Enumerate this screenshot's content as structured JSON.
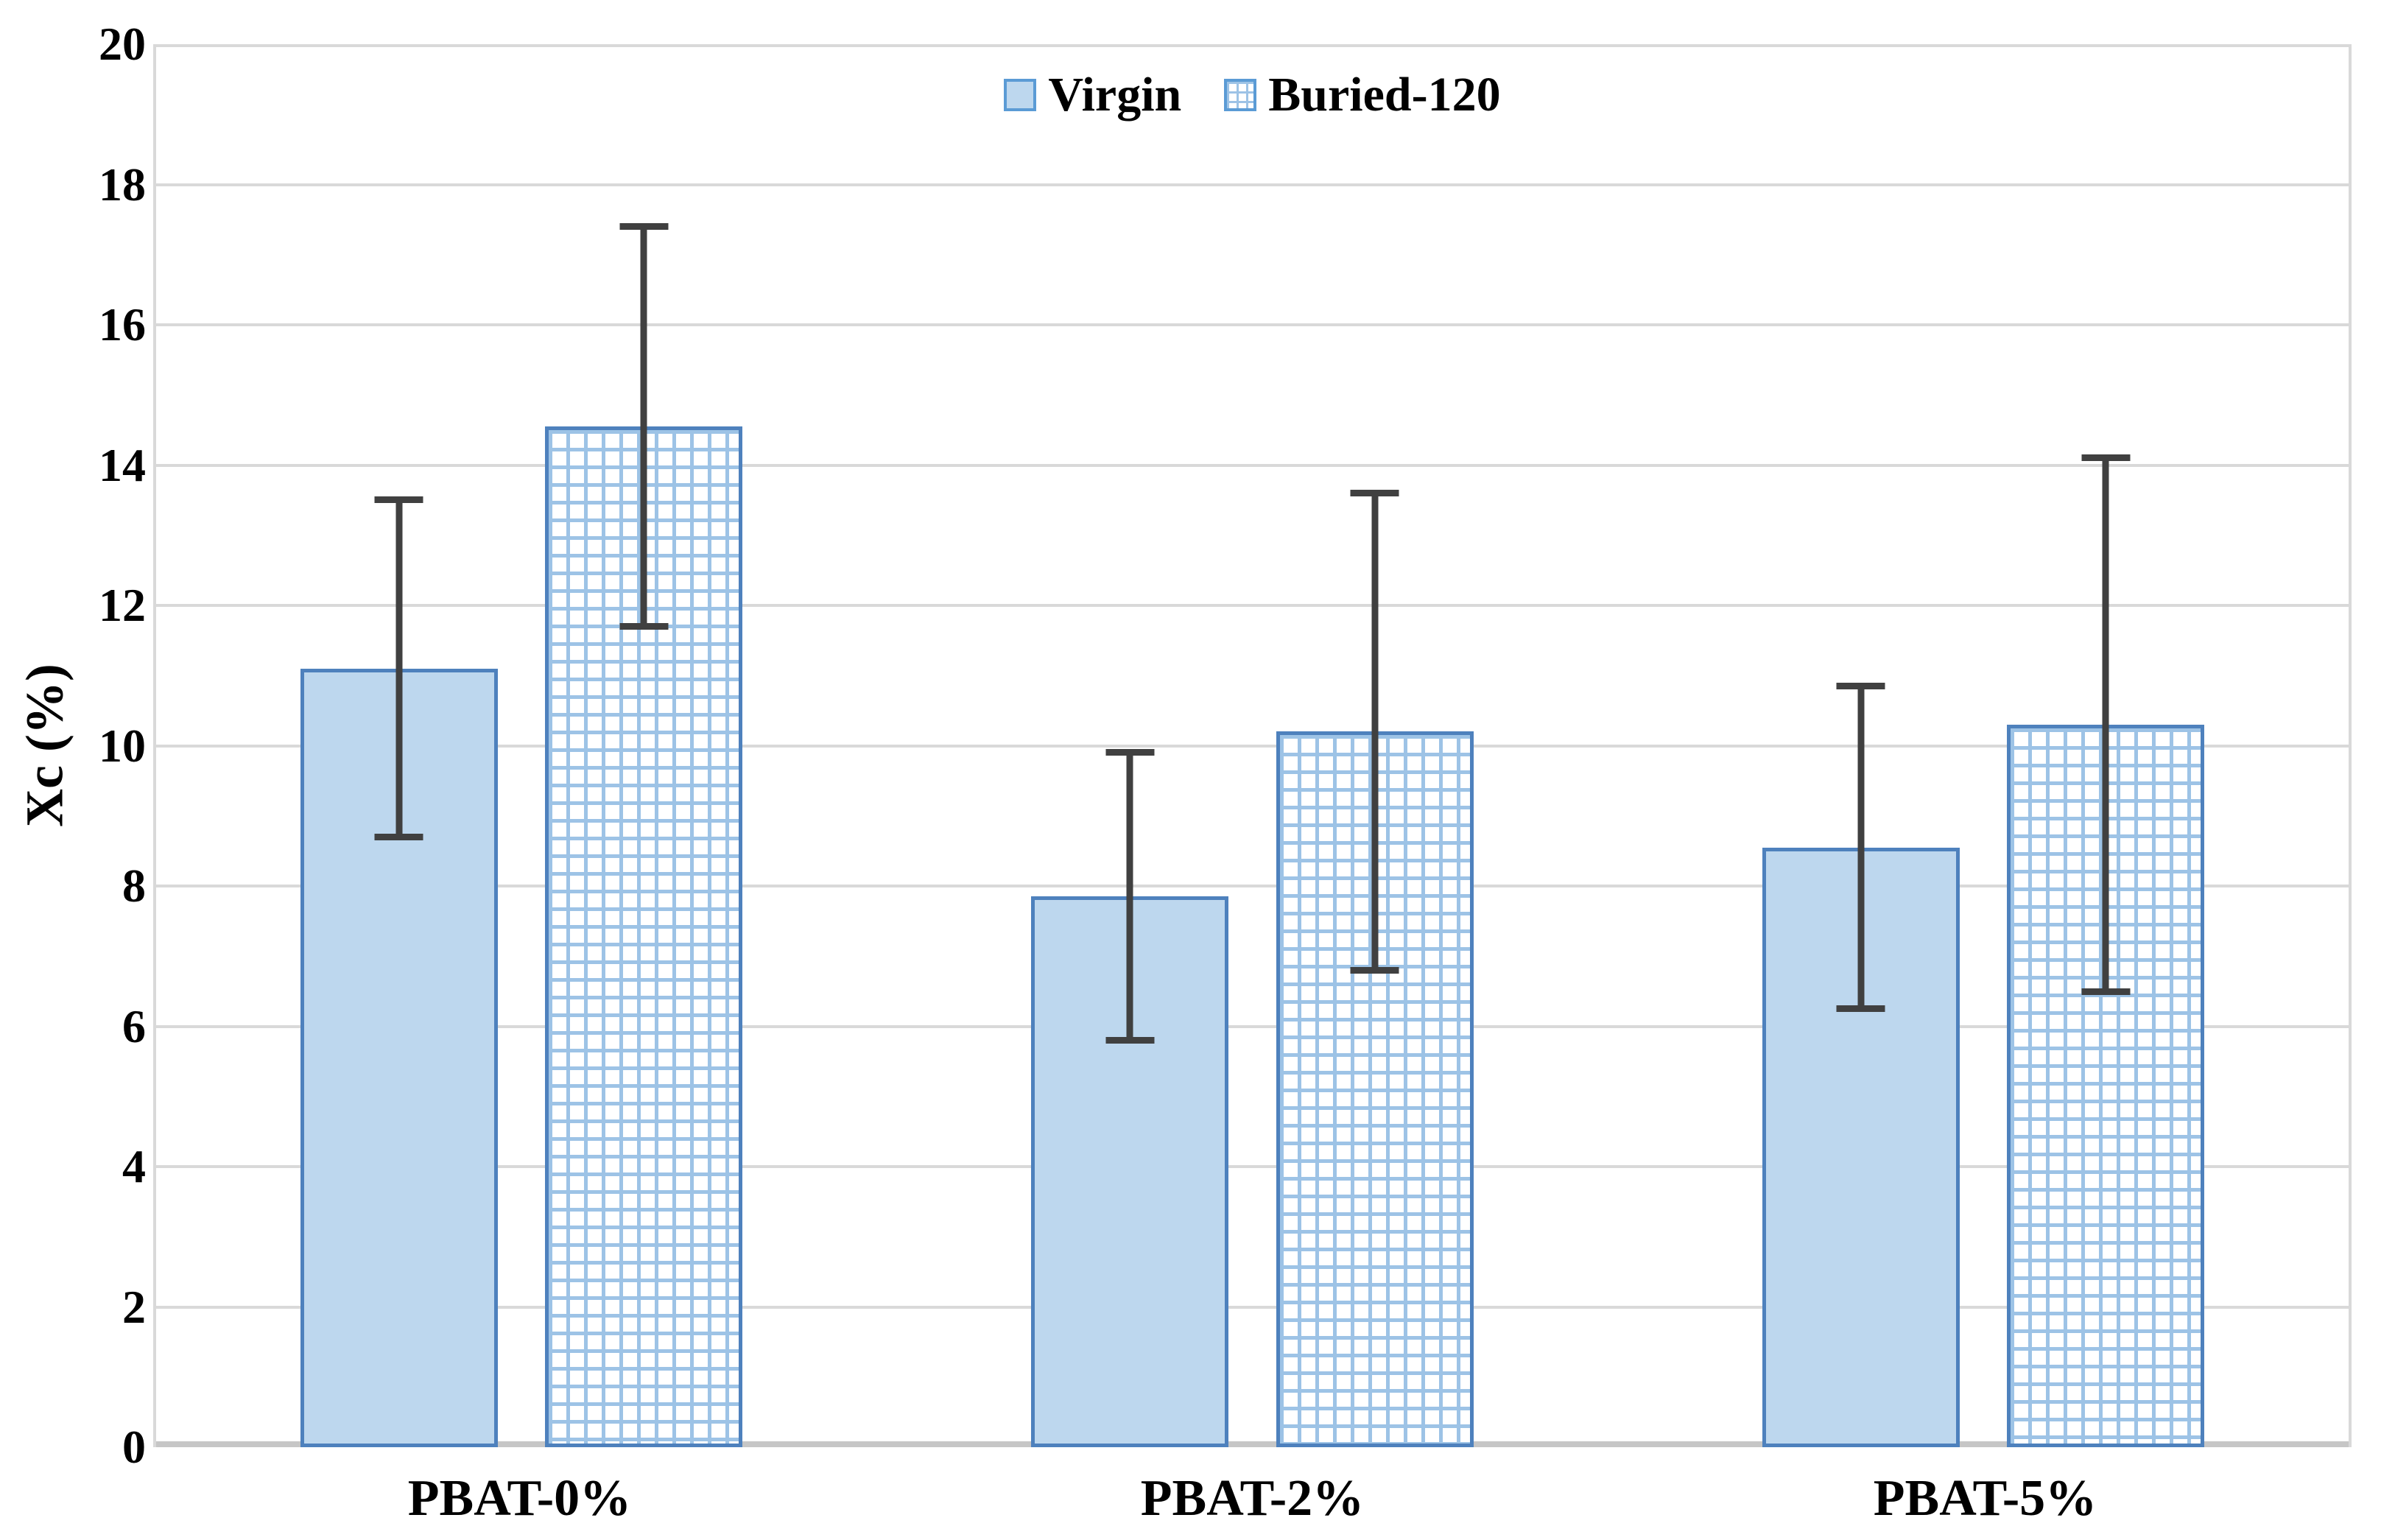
{
  "chart_data": {
    "type": "bar",
    "title": "",
    "categories": [
      "PBAT-0%",
      "PBAT-2%",
      "PBAT-5%"
    ],
    "series": [
      {
        "name": "Virgin",
        "pattern": "solid",
        "values": [
          11.1,
          7.85,
          8.55
        ],
        "errors": [
          2.45,
          2.1,
          2.35
        ]
      },
      {
        "name": "Buried-120",
        "pattern": "hatched",
        "values": [
          14.55,
          10.2,
          10.3
        ],
        "errors": [
          2.9,
          3.45,
          3.85
        ]
      }
    ],
    "xlabel": "",
    "ylabel": "Xc (%)",
    "ylim": [
      0,
      20
    ],
    "yticks": [
      0,
      2,
      4,
      6,
      8,
      10,
      12,
      14,
      16,
      18,
      20
    ],
    "grid": true,
    "legend_position": "top-center"
  },
  "colors": {
    "bar_fill": "#BDD7EE",
    "bar_border": "#4E81BD",
    "hatch_line": "#9DC3E6",
    "error_bar": "#404040",
    "gridline": "#D9D9D9",
    "axis_line": "#C6C6C6",
    "text": "#000000",
    "background": "#FFFFFF"
  }
}
